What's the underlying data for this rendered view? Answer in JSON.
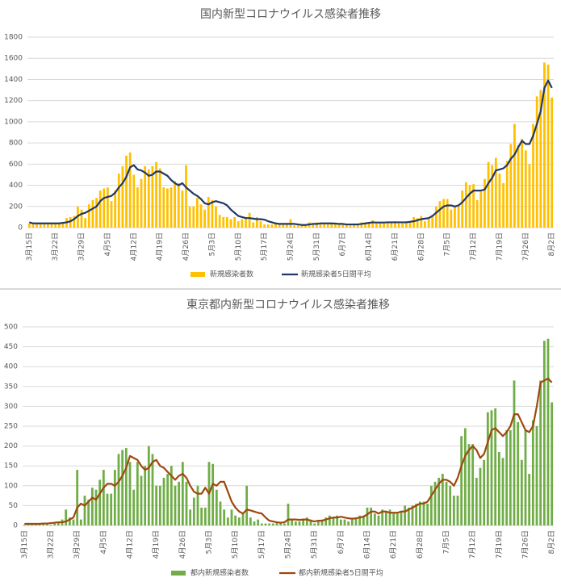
{
  "chart_data": [
    {
      "type": "bar",
      "title": "国内新型コロナウイルス感染者推移",
      "categories": [
        "3月15日",
        null,
        null,
        null,
        null,
        null,
        null,
        "3月22日",
        null,
        null,
        null,
        null,
        null,
        null,
        "3月29日",
        null,
        null,
        null,
        null,
        null,
        null,
        "4月5日",
        null,
        null,
        null,
        null,
        null,
        null,
        "4月12日",
        null,
        null,
        null,
        null,
        null,
        null,
        "4月19日",
        null,
        null,
        null,
        null,
        null,
        null,
        "4月26日",
        null,
        null,
        null,
        null,
        null,
        null,
        "5月3日",
        null,
        null,
        null,
        null,
        null,
        null,
        "5月10日",
        null,
        null,
        null,
        null,
        null,
        null,
        "5月17日",
        null,
        null,
        null,
        null,
        null,
        null,
        "5月24日",
        null,
        null,
        null,
        null,
        null,
        null,
        "5月31日",
        null,
        null,
        null,
        null,
        null,
        null,
        "6月7日",
        null,
        null,
        null,
        null,
        null,
        null,
        "6月14日",
        null,
        null,
        null,
        null,
        null,
        null,
        "6月21日",
        null,
        null,
        null,
        null,
        null,
        null,
        "6月28日",
        null,
        null,
        null,
        null,
        null,
        null,
        "7月5日",
        null,
        null,
        null,
        null,
        null,
        null,
        "7月12日",
        null,
        null,
        null,
        null,
        null,
        null,
        "7月19日",
        null,
        null,
        null,
        null,
        null,
        null,
        "7月26日",
        null,
        null,
        null,
        null,
        null,
        null,
        "8月2日"
      ],
      "series": [
        {
          "name": "新規感染者数",
          "type": "bar",
          "color": "#ffc000",
          "values": [
            40,
            30,
            40,
            40,
            40,
            50,
            40,
            40,
            40,
            40,
            90,
            100,
            110,
            200,
            170,
            90,
            220,
            260,
            280,
            350,
            370,
            380,
            250,
            350,
            510,
            580,
            680,
            710,
            500,
            380,
            460,
            580,
            550,
            580,
            620,
            560,
            380,
            370,
            380,
            440,
            420,
            350,
            590,
            200,
            200,
            280,
            220,
            170,
            290,
            260,
            200,
            120,
            100,
            100,
            80,
            100,
            60,
            80,
            100,
            140,
            50,
            100,
            60,
            30,
            30,
            30,
            40,
            30,
            30,
            30,
            80,
            20,
            20,
            30,
            30,
            50,
            30,
            50,
            30,
            40,
            40,
            40,
            40,
            40,
            40,
            30,
            20,
            40,
            40,
            50,
            40,
            50,
            70,
            40,
            40,
            40,
            50,
            50,
            60,
            40,
            40,
            60,
            50,
            100,
            90,
            110,
            60,
            90,
            120,
            200,
            250,
            270,
            270,
            170,
            200,
            210,
            350,
            430,
            400,
            410,
            260,
            340,
            460,
            620,
            590,
            660,
            510,
            420,
            630,
            790,
            980,
            780,
            840,
            730,
            600,
            980,
            1240,
            1300,
            1560,
            1540,
            1230
          ]
        },
        {
          "name": "新規感染者5日間平均",
          "type": "line",
          "color": "#203864",
          "values": [
            50,
            40,
            40,
            40,
            40,
            40,
            40,
            40,
            40,
            45,
            50,
            60,
            80,
            110,
            130,
            140,
            160,
            180,
            200,
            250,
            280,
            290,
            300,
            330,
            380,
            420,
            480,
            570,
            590,
            550,
            540,
            520,
            490,
            500,
            530,
            530,
            510,
            490,
            450,
            420,
            400,
            420,
            380,
            350,
            320,
            300,
            270,
            230,
            220,
            240,
            250,
            240,
            230,
            210,
            170,
            140,
            110,
            100,
            90,
            90,
            85,
            80,
            80,
            75,
            60,
            50,
            40,
            35,
            35,
            35,
            35,
            35,
            30,
            25,
            25,
            30,
            35,
            35,
            40,
            40,
            40,
            40,
            38,
            35,
            35,
            30,
            30,
            30,
            30,
            35,
            40,
            45,
            50,
            48,
            48,
            48,
            50,
            50,
            50,
            50,
            50,
            50,
            55,
            60,
            70,
            80,
            85,
            90,
            110,
            140,
            170,
            200,
            210,
            210,
            200,
            210,
            240,
            280,
            320,
            350,
            350,
            350,
            360,
            420,
            470,
            540,
            550,
            560,
            590,
            650,
            690,
            760,
            820,
            790,
            790,
            870,
            980,
            1100,
            1320,
            1390,
            1320
          ]
        }
      ],
      "ylim": [
        0,
        1800
      ],
      "yticks": [
        0,
        200,
        400,
        600,
        800,
        1000,
        1200,
        1400,
        1600,
        1800
      ],
      "grid": true,
      "legend": "bottom"
    },
    {
      "type": "bar",
      "title": "東京都内新型コロナウイルス感染者推移",
      "categories": [
        "3月15日",
        null,
        null,
        null,
        null,
        null,
        null,
        "3月22日",
        null,
        null,
        null,
        null,
        null,
        null,
        "3月29日",
        null,
        null,
        null,
        null,
        null,
        null,
        "4月5日",
        null,
        null,
        null,
        null,
        null,
        null,
        "4月12日",
        null,
        null,
        null,
        null,
        null,
        null,
        "4月19日",
        null,
        null,
        null,
        null,
        null,
        null,
        "4月26日",
        null,
        null,
        null,
        null,
        null,
        null,
        "5月3日",
        null,
        null,
        null,
        null,
        null,
        null,
        "5月10日",
        null,
        null,
        null,
        null,
        null,
        null,
        "5月17日",
        null,
        null,
        null,
        null,
        null,
        null,
        "5月24日",
        null,
        null,
        null,
        null,
        null,
        null,
        "5月31日",
        null,
        null,
        null,
        null,
        null,
        null,
        "6月7日",
        null,
        null,
        null,
        null,
        null,
        null,
        "6月14日",
        null,
        null,
        null,
        null,
        null,
        null,
        "6月21日",
        null,
        null,
        null,
        null,
        null,
        null,
        "6月28日",
        null,
        null,
        null,
        null,
        null,
        null,
        "7月5日",
        null,
        null,
        null,
        null,
        null,
        null,
        "7月12日",
        null,
        null,
        null,
        null,
        null,
        null,
        "7月19日",
        null,
        null,
        null,
        null,
        null,
        null,
        "7月26日",
        null,
        null,
        null,
        null,
        null,
        null,
        "8月2日"
      ],
      "series": [
        {
          "name": "都内新規感染者数",
          "type": "bar",
          "color": "#70ad47",
          "values": [
            2,
            2,
            5,
            5,
            5,
            3,
            5,
            2,
            5,
            10,
            15,
            40,
            20,
            15,
            140,
            15,
            75,
            65,
            95,
            90,
            115,
            140,
            80,
            80,
            140,
            180,
            190,
            195,
            160,
            90,
            160,
            125,
            150,
            200,
            180,
            100,
            100,
            120,
            130,
            150,
            100,
            110,
            160,
            110,
            40,
            70,
            100,
            45,
            45,
            160,
            155,
            90,
            60,
            40,
            20,
            40,
            25,
            20,
            30,
            100,
            20,
            10,
            15,
            5,
            5,
            5,
            5,
            10,
            5,
            5,
            55,
            15,
            10,
            10,
            15,
            20,
            15,
            5,
            10,
            15,
            20,
            25,
            20,
            25,
            15,
            15,
            10,
            15,
            20,
            25,
            25,
            45,
            45,
            30,
            25,
            40,
            35,
            40,
            30,
            30,
            35,
            50,
            45,
            50,
            55,
            60,
            60,
            55,
            100,
            110,
            120,
            130,
            110,
            100,
            75,
            75,
            225,
            245,
            205,
            205,
            120,
            145,
            165,
            285,
            290,
            295,
            185,
            170,
            240,
            240,
            365,
            260,
            165,
            240,
            130,
            265,
            250,
            365,
            465,
            470,
            310
          ]
        },
        {
          "name": "都内新規感染者5日間平均",
          "type": "line",
          "color": "#9e480e",
          "values": [
            4,
            4,
            4,
            4,
            4,
            5,
            5,
            6,
            7,
            8,
            8,
            10,
            15,
            20,
            45,
            55,
            50,
            60,
            70,
            65,
            80,
            95,
            105,
            105,
            100,
            110,
            125,
            145,
            175,
            170,
            165,
            150,
            140,
            145,
            160,
            165,
            150,
            145,
            135,
            125,
            115,
            125,
            130,
            120,
            100,
            85,
            80,
            80,
            95,
            80,
            105,
            100,
            110,
            110,
            85,
            60,
            45,
            35,
            30,
            40,
            38,
            35,
            32,
            30,
            20,
            12,
            10,
            8,
            7,
            8,
            15,
            15,
            15,
            14,
            15,
            15,
            12,
            10,
            12,
            12,
            15,
            18,
            20,
            20,
            22,
            20,
            18,
            17,
            18,
            20,
            22,
            28,
            35,
            35,
            30,
            35,
            35,
            32,
            32,
            32,
            35,
            35,
            40,
            45,
            50,
            55,
            55,
            60,
            75,
            90,
            105,
            115,
            115,
            110,
            100,
            120,
            150,
            175,
            190,
            200,
            190,
            170,
            180,
            210,
            240,
            245,
            235,
            225,
            235,
            250,
            280,
            280,
            260,
            240,
            235,
            250,
            300,
            360,
            365,
            370,
            360
          ]
        }
      ],
      "ylim": [
        0,
        500
      ],
      "yticks": [
        0,
        50,
        100,
        150,
        200,
        250,
        300,
        350,
        400,
        450,
        500
      ],
      "grid": true,
      "legend": "bottom"
    }
  ]
}
